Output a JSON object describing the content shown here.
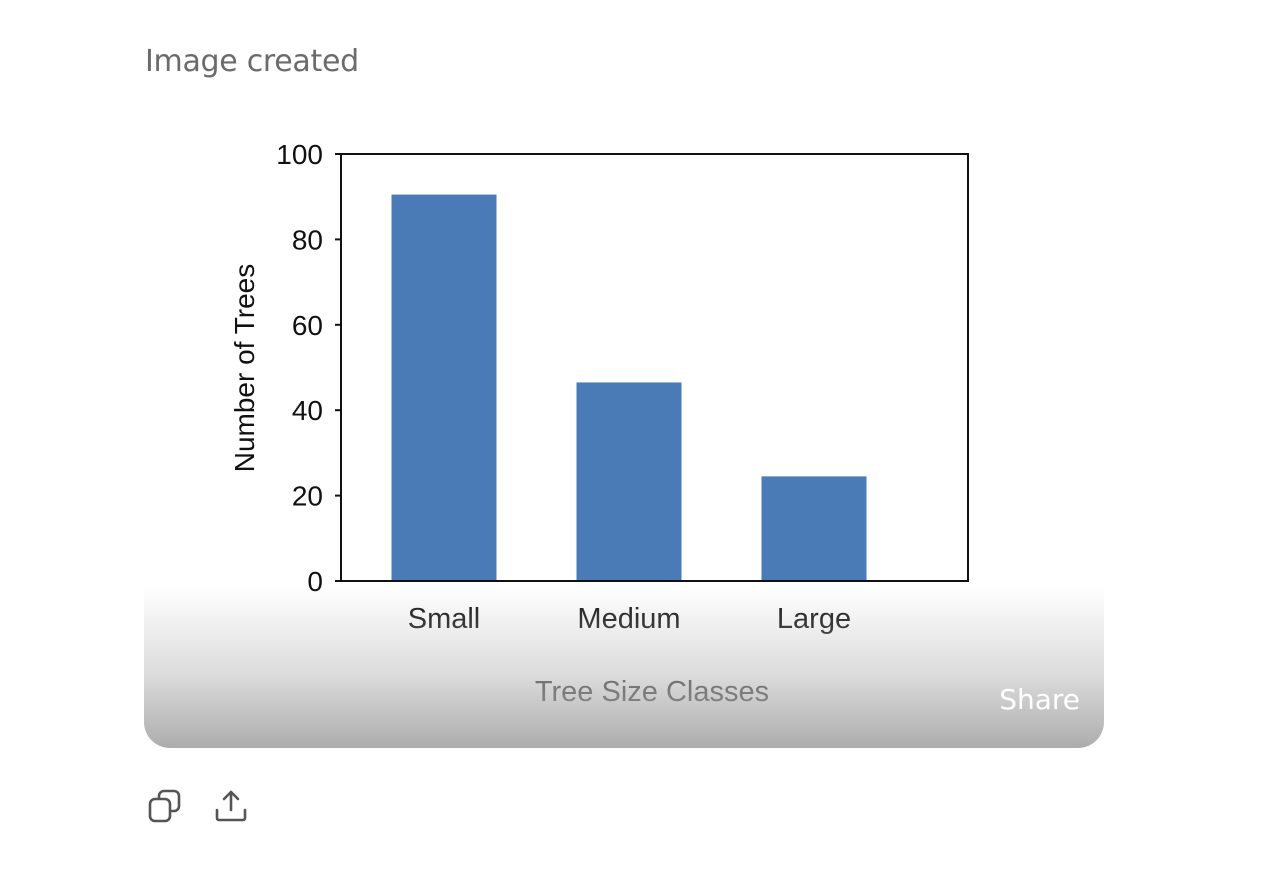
{
  "status_text": "Image created",
  "share_label": "Share",
  "chart_data": {
    "type": "bar",
    "categories": [
      "Small",
      "Medium",
      "Large"
    ],
    "values": [
      90.5,
      46.5,
      24.5
    ],
    "xlabel": "Tree Size Classes",
    "ylabel": "Number of Trees",
    "ylim": [
      0,
      100
    ],
    "yticks": [
      0,
      20,
      40,
      60,
      80,
      100
    ],
    "bar_color": "#4a7bb7",
    "grid": false
  },
  "actions": {
    "copy_icon": "copy-icon",
    "share_icon": "upload-icon"
  }
}
